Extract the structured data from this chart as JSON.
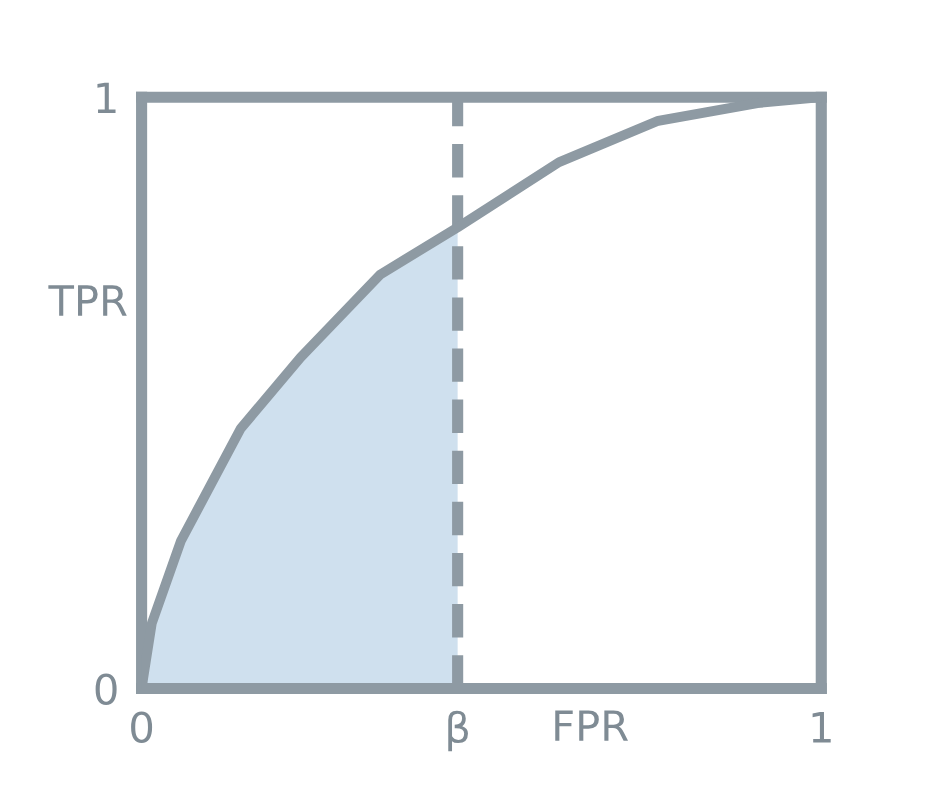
{
  "chart_data": {
    "type": "line",
    "xlabel": "FPR",
    "ylabel": "TPR",
    "xlim": [
      0,
      1
    ],
    "ylim": [
      0,
      1
    ],
    "xticks": [
      0,
      {
        "value": 0.465,
        "label": "β"
      },
      1
    ],
    "yticks": [
      0,
      1
    ],
    "grid": false,
    "marker": "none",
    "line_style": "solid",
    "series": [
      {
        "type": "area",
        "color": "#cfe0ee",
        "x": [
          0,
          0.015,
          0.058,
          0.146,
          0.234,
          0.351,
          0.465
        ],
        "values": [
          0,
          0.11,
          0.25,
          0.44,
          0.56,
          0.7,
          0.78
        ]
      },
      {
        "color": "#8e9aa3",
        "x": [
          0,
          0.015,
          0.058,
          0.146,
          0.234,
          0.351,
          0.465,
          0.614,
          0.76,
          0.906,
          1
        ],
        "values": [
          0,
          0.11,
          0.25,
          0.44,
          0.56,
          0.7,
          0.78,
          0.89,
          0.96,
          0.99,
          1
        ]
      }
    ],
    "ref_lines": [
      {
        "axis": "x",
        "value": 0.465,
        "color": "#8e9aa3",
        "line_style": "dashed"
      }
    ]
  }
}
